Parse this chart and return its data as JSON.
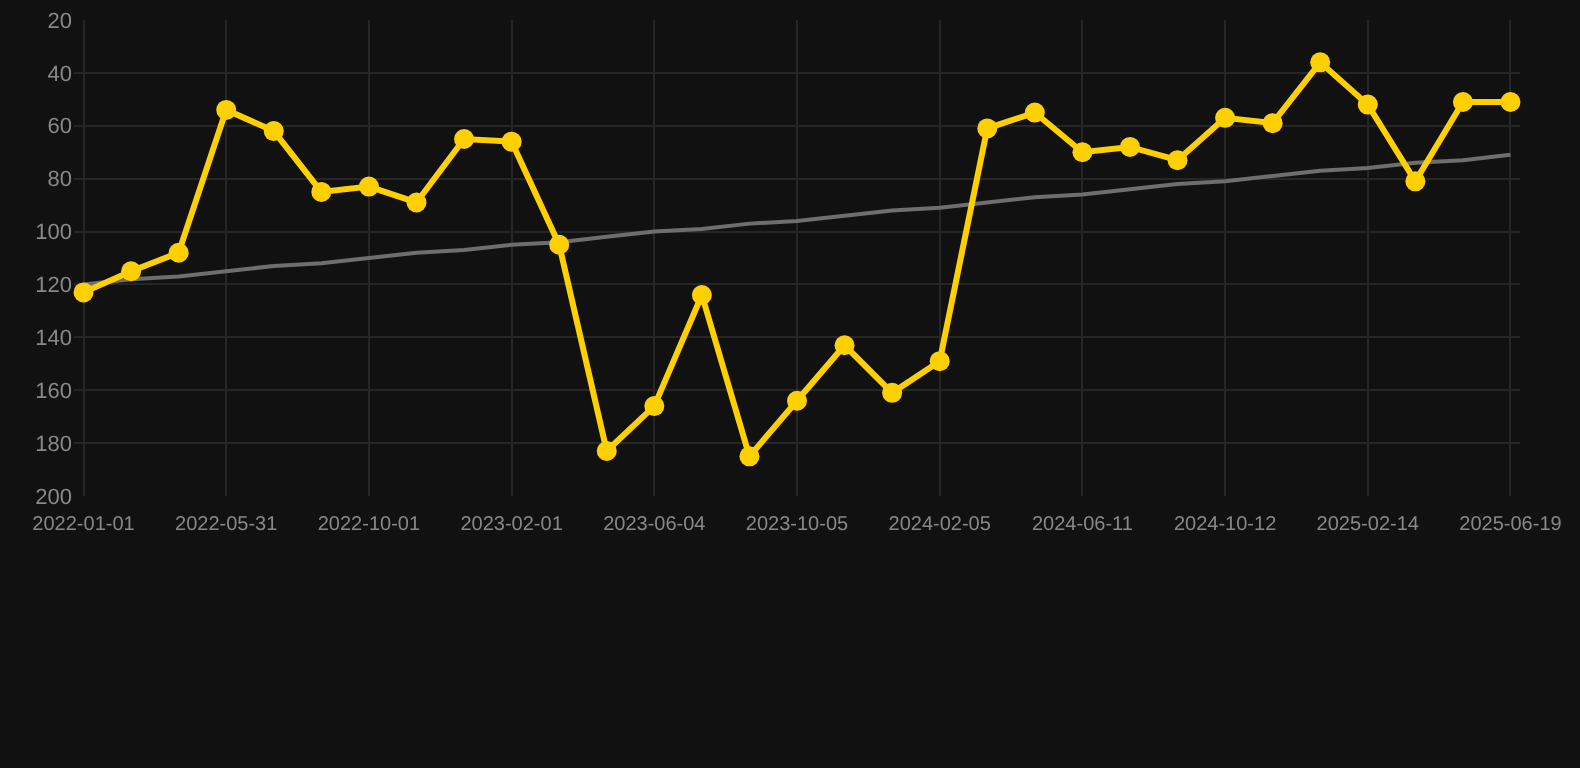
{
  "chart_data": {
    "type": "line",
    "categories": [
      "2022-01-01",
      null,
      null,
      "2022-05-31",
      null,
      null,
      "2022-10-01",
      null,
      null,
      "2023-02-01",
      null,
      null,
      "2023-06-04",
      null,
      null,
      "2023-10-05",
      null,
      null,
      "2024-02-05",
      null,
      null,
      "2024-06-11",
      null,
      null,
      "2024-10-12",
      null,
      null,
      "2025-02-14",
      null,
      null,
      "2025-06-19"
    ],
    "series": [
      {
        "color": "#ffd000",
        "marker": "circle",
        "values": [
          123,
          115,
          108,
          54,
          62,
          85,
          83,
          89,
          65,
          66,
          105,
          183,
          166,
          124,
          185,
          164,
          143,
          161,
          149,
          61,
          55,
          70,
          68,
          73,
          57,
          59,
          36,
          52,
          81,
          51,
          51
        ]
      },
      {
        "color": "#6e6e6e",
        "marker": "none",
        "values": [
          120,
          118,
          117,
          115,
          113,
          112,
          110,
          108,
          107,
          105,
          104,
          102,
          100,
          99,
          97,
          96,
          94,
          92,
          91,
          89,
          87,
          86,
          84,
          82,
          81,
          79,
          77,
          76,
          74,
          73,
          71
        ]
      }
    ],
    "ylim": [
      200,
      20
    ],
    "yticks": [
      20,
      40,
      60,
      80,
      100,
      120,
      140,
      160,
      180,
      200
    ],
    "grid": true
  }
}
